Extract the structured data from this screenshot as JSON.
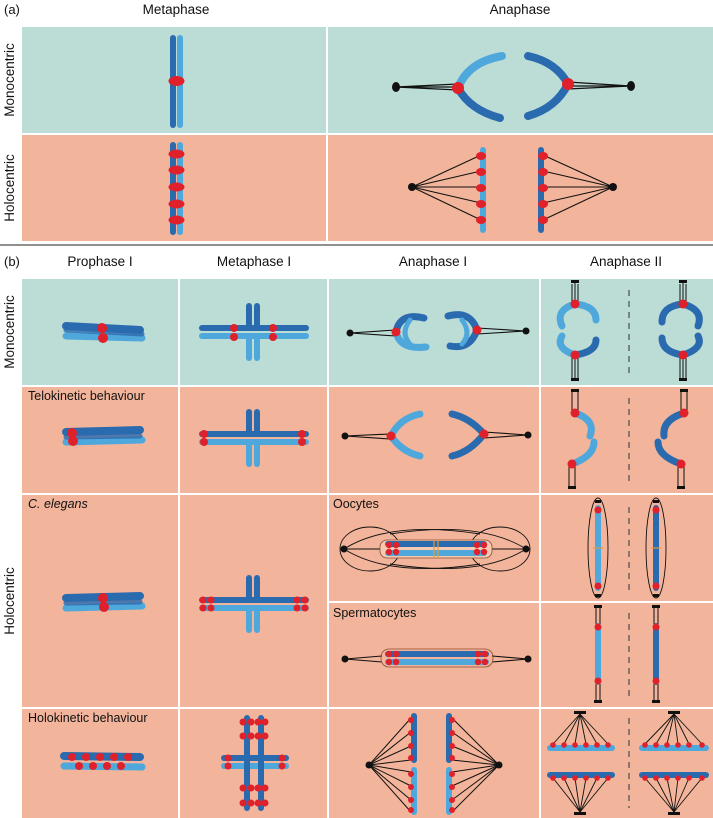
{
  "panel_a": {
    "label": "(a)",
    "columns": [
      "Metaphase",
      "Anaphase"
    ],
    "rows": [
      "Monocentric",
      "Holocentric"
    ]
  },
  "panel_b": {
    "label": "(b)",
    "columns": [
      "Prophase I",
      "Metaphase I",
      "Anaphase I",
      "Anaphase II"
    ],
    "rows": [
      "Monocentric",
      "Holocentric"
    ],
    "sublabels": {
      "telokinetic": "Telokinetic behaviour",
      "c_elegans": "C. elegans",
      "oocytes": "Oocytes",
      "spermatocytes": "Spermatocytes",
      "holokinetic": "Holokinetic behaviour"
    }
  },
  "colors": {
    "monocentric_bg": "#bcdcd6",
    "holocentric_bg": "#f2b49a",
    "chromatid_dark": "#2a6aae",
    "chromatid_light": "#4fa8dc",
    "kinetochore": "#e0202a",
    "spindle": "#111111"
  }
}
